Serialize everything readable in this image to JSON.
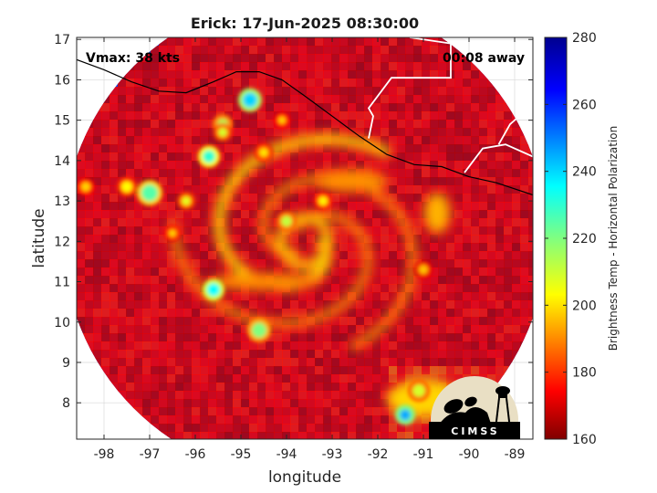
{
  "title": "Erick: 17-Jun-2025 08:30:00",
  "annotations": {
    "vmax": "Vmax: 38 kts",
    "time_away": "00:08 away"
  },
  "axes": {
    "xlabel": "longitude",
    "ylabel": "latitude",
    "xlim": [
      -98.6,
      -88.6
    ],
    "ylim": [
      7.1,
      17.05
    ],
    "xticks": [
      -98,
      -97,
      -96,
      -95,
      -94,
      -93,
      -92,
      -91,
      -90,
      -89
    ],
    "yticks": [
      8,
      9,
      10,
      11,
      12,
      13,
      14,
      15,
      16,
      17
    ],
    "grid": true
  },
  "colorbar": {
    "label": "Brightness Temp - Horizontal Polarization",
    "range": [
      160,
      280
    ],
    "ticks": [
      160,
      180,
      200,
      220,
      240,
      260,
      280
    ],
    "colormap": "jet"
  },
  "map_layers": [
    "coastline",
    "country-borders",
    "swath-boundary"
  ],
  "swath": {
    "center_lon": -93.6,
    "center_lat": 12.1,
    "radius_deg": 5.3
  },
  "storm_center": {
    "lon": -93.6,
    "lat": 12.0
  },
  "logo": {
    "text": "CIMSS"
  },
  "colors": {
    "background": "#ffffff",
    "axis": "#262626",
    "grid": "#d9d9d9",
    "land": "#000000",
    "border": "#ffffff"
  }
}
